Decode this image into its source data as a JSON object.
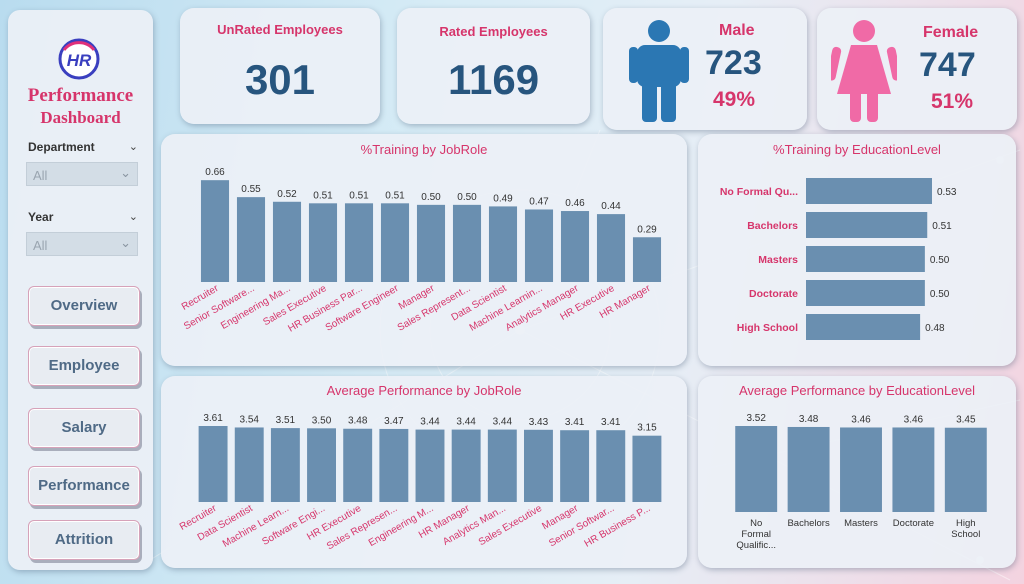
{
  "sidebar": {
    "title_line1": "Performance",
    "title_line2": "Dashboard",
    "slicers": [
      {
        "label": "Department",
        "value": "All"
      },
      {
        "label": "Year",
        "value": "All"
      }
    ],
    "nav": [
      "Overview",
      "Employee",
      "Salary",
      "Performance",
      "Attrition"
    ]
  },
  "kpis": {
    "unrated": {
      "title": "UnRated Employees",
      "value": "301"
    },
    "rated": {
      "title": "Rated Employees",
      "value": "1169"
    },
    "male": {
      "title": "Male",
      "count": "723",
      "pct": "49%"
    },
    "female": {
      "title": "Female",
      "count": "747",
      "pct": "51%"
    }
  },
  "colors": {
    "bar": "#6a8fb0",
    "accent": "#d6356b",
    "kpi": "#27557e",
    "male": "#2b77b3",
    "female": "#f06aa6"
  },
  "chart_data": [
    {
      "id": "training_jobrole",
      "type": "bar",
      "title": "%Training by JobRole",
      "categories": [
        "Recruiter",
        "Senior Software...",
        "Engineering Ma...",
        "Sales Executive",
        "HR Business Par...",
        "Software Engineer",
        "Manager",
        "Sales Represent...",
        "Data Scientist",
        "Machine Learnin...",
        "Analytics Manager",
        "HR Executive",
        "HR Manager"
      ],
      "values": [
        0.66,
        0.55,
        0.52,
        0.51,
        0.51,
        0.51,
        0.5,
        0.5,
        0.49,
        0.47,
        0.46,
        0.44,
        0.29
      ],
      "labels": [
        "0.66",
        "0.55",
        "0.52",
        "0.51",
        "0.51",
        "0.51",
        "0.50",
        "0.50",
        "0.49",
        "0.47",
        "0.46",
        "0.44",
        "0.29"
      ],
      "ylim": [
        0,
        0.7
      ]
    },
    {
      "id": "training_education",
      "type": "bar",
      "orientation": "horizontal",
      "title": "%Training by EducationLevel",
      "categories": [
        "No Formal Qu...",
        "Bachelors",
        "Masters",
        "Doctorate",
        "High School"
      ],
      "values": [
        0.53,
        0.51,
        0.5,
        0.5,
        0.48
      ],
      "labels": [
        "0.53",
        "0.51",
        "0.50",
        "0.50",
        "0.48"
      ],
      "xlim": [
        0,
        0.53
      ]
    },
    {
      "id": "perf_jobrole",
      "type": "bar",
      "title": "Average Performance by JobRole",
      "categories": [
        "Recruiter",
        "Data Scientist",
        "Machine Learn...",
        "Software Engi...",
        "HR Executive",
        "Sales Represen...",
        "Engineering M...",
        "HR Manager",
        "Analytics Man...",
        "Sales Executive",
        "Manager",
        "Senior Softwar...",
        "HR Business P..."
      ],
      "values": [
        3.61,
        3.54,
        3.51,
        3.5,
        3.48,
        3.47,
        3.44,
        3.44,
        3.44,
        3.43,
        3.41,
        3.41,
        3.15
      ],
      "labels": [
        "3.61",
        "3.54",
        "3.51",
        "3.50",
        "3.48",
        "3.47",
        "3.44",
        "3.44",
        "3.44",
        "3.43",
        "3.41",
        "3.41",
        "3.15"
      ],
      "ylim": [
        0,
        3.61
      ]
    },
    {
      "id": "perf_education",
      "type": "bar",
      "title": "Average Performance by EducationLevel",
      "categories": [
        "No Formal Qualific...",
        "Bachelors",
        "Masters",
        "Doctorate",
        "High School"
      ],
      "category_lines": [
        [
          "No",
          "Formal",
          "Qualific..."
        ],
        [
          "Bachelors"
        ],
        [
          "Masters"
        ],
        [
          "Doctorate"
        ],
        [
          "High",
          "School"
        ]
      ],
      "values": [
        3.52,
        3.48,
        3.46,
        3.46,
        3.45
      ],
      "labels": [
        "3.52",
        "3.48",
        "3.46",
        "3.46",
        "3.45"
      ],
      "ylim": [
        0,
        3.52
      ]
    }
  ]
}
